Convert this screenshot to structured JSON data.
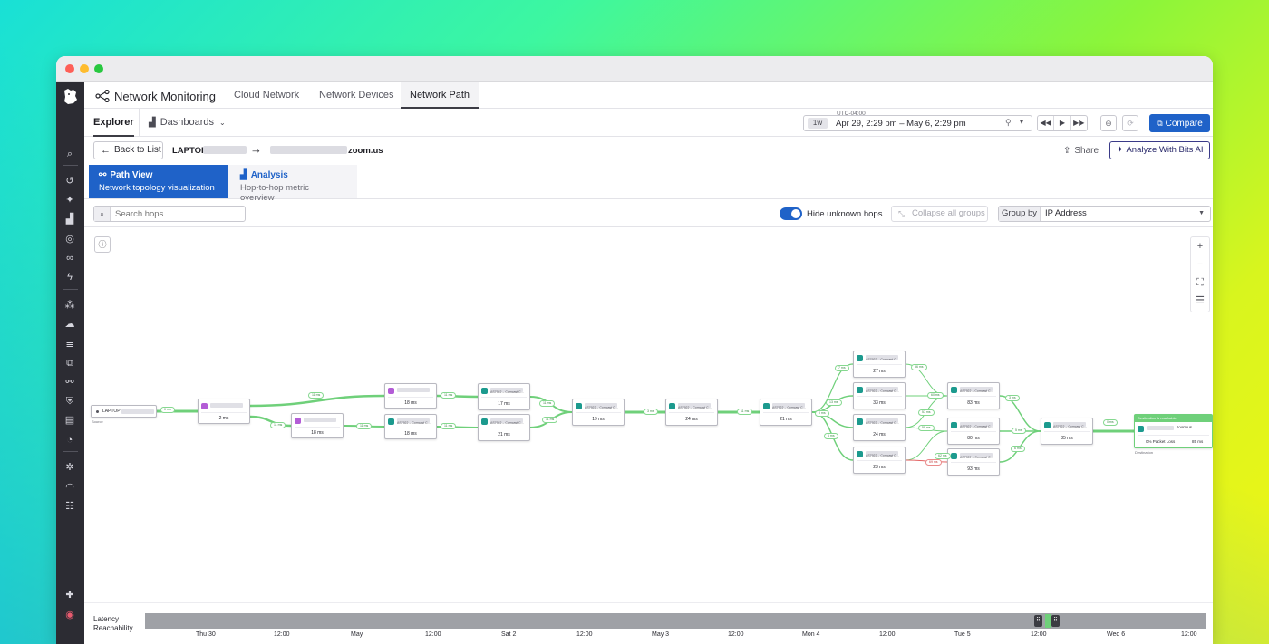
{
  "app": {
    "title": "Network Monitoring",
    "tabs": [
      "Cloud Network",
      "Network Devices",
      "Network Path"
    ],
    "active_tab": "Network Path"
  },
  "subnav": {
    "explorer": "Explorer",
    "dashboards": "Dashboards",
    "timezone": "UTC-04:00",
    "range_pill": "1w",
    "range_text": "Apr 29, 2:29 pm – May 6, 2:29 pm",
    "compare": "Compare"
  },
  "pathbar": {
    "back": "Back to List",
    "source": "LAPTOP",
    "destination": "zoom.us",
    "share": "Share",
    "analyze": "Analyze With Bits AI"
  },
  "viewtabs": {
    "path_view": {
      "title": "Path View",
      "subtitle": "Network topology visualization"
    },
    "analysis": {
      "title": "Analysis",
      "subtitle": "Hop-to-hop metric overview"
    }
  },
  "filters": {
    "search_placeholder": "Search hops",
    "hide_unknown": "Hide unknown hops",
    "collapse": "Collapse all groups",
    "group_by_label": "Group by",
    "group_by_value": "IP Address"
  },
  "graph": {
    "source_label": "LAPTOP",
    "source_caption": "Source",
    "dest_caption": "Destination",
    "dest_banner": "Destination is reachable",
    "dest_domain": "zoom.us",
    "dest_loss": "0% Packet Loss",
    "dest_latency": "85 ms",
    "asn_text": "AS7922 – Comcast C...",
    "latencies": {
      "h1": "2 ms",
      "h2a": "18 ms",
      "h2b": "18 ms",
      "h3a": "18 ms",
      "h3b": "18 ms",
      "h4a": "17 ms",
      "h4b": "21 ms",
      "h5": "19 ms",
      "h6": "24 ms",
      "h7": "21 ms",
      "h8a": "27 ms",
      "h8b": "33 ms",
      "h8c": "24 ms",
      "h8d": "23 ms",
      "h9a": "83 ms",
      "h9b": "80 ms",
      "h9c": "93 ms",
      "h10": "85 ms"
    },
    "edge_labels": {
      "e_src": "0 ms",
      "e1a": "11 ms",
      "e1b": "11 ms",
      "e2": "11 ms",
      "e3a": "11 ms",
      "e3b": "11 ms",
      "e4a": "11 ms",
      "e4b": "11 ms",
      "e5": "3 ms",
      "e6": "11 ms",
      "e7a": "7 ms",
      "e7b": "13 ms",
      "e7c": "0 ms",
      "e7d": "6 ms",
      "e8a": "56 ms",
      "e8b": "60 ms",
      "e8c": "57 ms",
      "e8d": "58 ms",
      "e8e": "62 ms",
      "e8f": "69 ms",
      "e9a": "3 ms",
      "e9b": "5 ms",
      "e9c": "6 ms",
      "e10": "0 ms"
    }
  },
  "timeline": {
    "labels": [
      "Latency",
      "Reachability"
    ],
    "ticks": [
      "Thu 30",
      "12:00",
      "May",
      "12:00",
      "Sat 2",
      "12:00",
      "May 3",
      "12:00",
      "Mon 4",
      "12:00",
      "Tue 5",
      "12:00",
      "Wed 6",
      "12:00"
    ]
  },
  "colors": {
    "brand": "#1f62c8",
    "sidebar": "#2c2c33",
    "edge_ok": "#6fd07a",
    "edge_bad": "#e36565",
    "hop_private": "#b35cd6",
    "hop_public": "#1c9a8e"
  }
}
